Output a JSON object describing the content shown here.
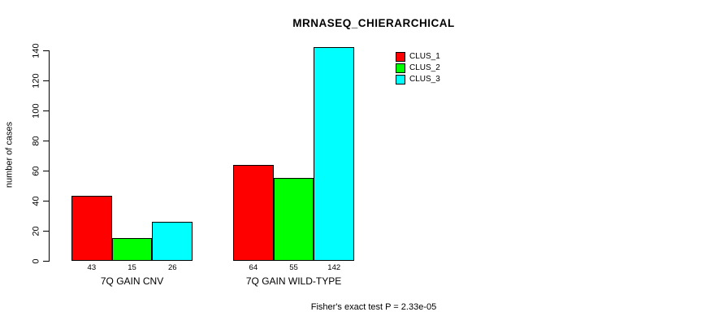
{
  "title": "MRNASEQ_CHIERARCHICAL",
  "footer": "Fisher's exact test P = 2.33e-05",
  "colors": {
    "clus_1": "#FF0000",
    "clus_2": "#00FF00",
    "clus_3": "#00FFFF",
    "axis": "#000000",
    "background": "#FFFFFF"
  },
  "chart_data": {
    "type": "bar",
    "title": "MRNASEQ_CHIERARCHICAL",
    "xlabel": "",
    "ylabel": "number of cases",
    "categories": [
      "7Q GAIN CNV",
      "7Q GAIN WILD-TYPE"
    ],
    "series": [
      {
        "name": "CLUS_1",
        "color": "#FF0000",
        "values": [
          43,
          64
        ]
      },
      {
        "name": "CLUS_2",
        "color": "#00FF00",
        "values": [
          15,
          55
        ]
      },
      {
        "name": "CLUS_3",
        "color": "#00FFFF",
        "values": [
          26,
          142
        ]
      }
    ],
    "bar_value_labels": [
      [
        43,
        15,
        26
      ],
      [
        64,
        55,
        142
      ]
    ],
    "yticks": [
      0,
      20,
      40,
      60,
      80,
      100,
      120,
      140
    ],
    "ylim": [
      0,
      140
    ],
    "grid": false,
    "legend_position": "top-right",
    "annotation": "Fisher's exact test P = 2.33e-05"
  }
}
